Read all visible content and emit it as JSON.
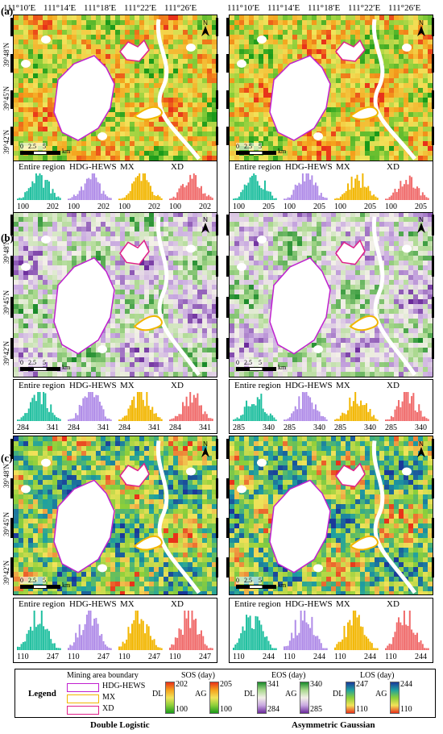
{
  "lon_labels": [
    "111°10′E",
    "111°14′E",
    "111°18′E",
    "111°22′E",
    "111°26′E"
  ],
  "lat_labels": [
    "39°48′N",
    "39°45′N",
    "39°42′N"
  ],
  "panel_labels": [
    "(a)",
    "(b)",
    "(c)"
  ],
  "scale": {
    "ticks": [
      "0",
      "2.5",
      "5"
    ],
    "unit": "km"
  },
  "north_label": "N",
  "hist_titles": [
    "Entire region",
    "HDG-HEWS",
    "MX",
    "XD"
  ],
  "hist_colors": [
    "#1fbf9f",
    "#b08ce8",
    "#f2b600",
    "#f06a6a"
  ],
  "rows": [
    {
      "dl_ticks": [
        "100",
        "202",
        "100",
        "202",
        "100",
        "202",
        "100",
        "202"
      ],
      "ag_ticks": [
        "100",
        "205",
        "100",
        "205",
        "100",
        "205",
        "100",
        "205"
      ]
    },
    {
      "dl_ticks": [
        "284",
        "341",
        "284",
        "341",
        "284",
        "341",
        "284",
        "341"
      ],
      "ag_ticks": [
        "285",
        "340",
        "285",
        "340",
        "285",
        "340",
        "285",
        "340"
      ]
    },
    {
      "dl_ticks": [
        "110",
        "247",
        "110",
        "247",
        "110",
        "247",
        "110",
        "247"
      ],
      "ag_ticks": [
        "110",
        "244",
        "110",
        "244",
        "110",
        "244",
        "110",
        "244"
      ]
    }
  ],
  "legend": {
    "title": "Legend",
    "mining_title": "Mining area boundary",
    "mining": [
      {
        "label": "HDG-HEWS",
        "color": "#c020d0"
      },
      {
        "label": "MX",
        "color": "#f2b600"
      },
      {
        "label": "XD",
        "color": "#e0208a"
      }
    ],
    "sos": {
      "title": "SOS (day)",
      "dl": "DL",
      "ag": "AG",
      "dl_max": "202",
      "dl_min": "100",
      "ag_max": "205",
      "ag_min": "100"
    },
    "eos": {
      "title": "EOS (day)",
      "dl": "DL",
      "ag": "AG",
      "dl_max": "341",
      "dl_min": "284",
      "ag_max": "340",
      "ag_min": "285"
    },
    "los": {
      "title": "LOS (day)",
      "dl": "DL",
      "ag": "AG",
      "dl_max": "247",
      "dl_min": "110",
      "ag_max": "244",
      "ag_min": "110"
    }
  },
  "bottom_labels": [
    "Double Logistic",
    "Asymmetric Gaussian"
  ],
  "ramps": {
    "sos": [
      "#1a9a1a",
      "#8ccf3a",
      "#f2e35a",
      "#f4a21c",
      "#e8321a"
    ],
    "eos": [
      "#6a2a9a",
      "#c8a8e0",
      "#f3f0e8",
      "#a8d88c",
      "#1a8a2a"
    ],
    "los": [
      "#e8321a",
      "#f2e35a",
      "#8ccf3a",
      "#1fa0a0",
      "#1a3a9a"
    ]
  }
}
